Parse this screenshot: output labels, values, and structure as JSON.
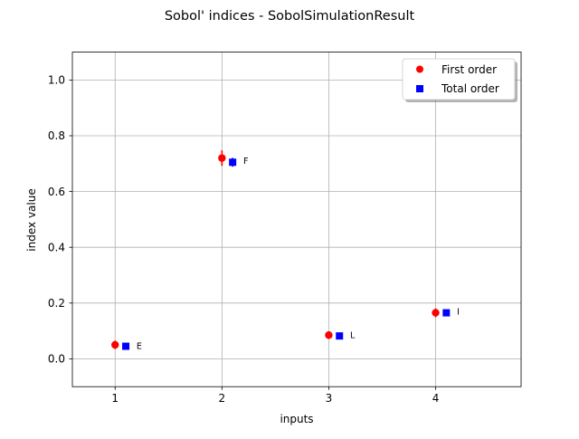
{
  "chart_data": {
    "type": "scatter",
    "title": "Sobol' indices - SobolSimulationResult",
    "xlabel": "inputs",
    "ylabel": "index value",
    "xlim": [
      0.6,
      4.8
    ],
    "ylim": [
      -0.1,
      1.1
    ],
    "xticks": [
      "1",
      "2",
      "3",
      "4"
    ],
    "yticks": [
      "0.0",
      "0.2",
      "0.4",
      "0.6",
      "0.8",
      "1.0"
    ],
    "grid": true,
    "legend": {
      "position": "top-right",
      "entries": [
        "First order",
        "Total order"
      ]
    },
    "series": [
      {
        "name": "First order",
        "marker": "circle",
        "color": "#ff0000",
        "x": [
          1,
          2,
          3,
          4
        ],
        "y": [
          0.05,
          0.72,
          0.085,
          0.165
        ],
        "err": [
          0.015,
          0.028,
          0.014,
          0.016
        ]
      },
      {
        "name": "Total order",
        "marker": "square",
        "color": "#0000ff",
        "x": [
          1.1,
          2.1,
          3.1,
          4.1
        ],
        "y": [
          0.045,
          0.705,
          0.082,
          0.165
        ],
        "err": [
          0.006,
          0.016,
          0.006,
          0.006
        ]
      }
    ],
    "annotations": [
      {
        "text": "E",
        "x": 1.2,
        "y": 0.047
      },
      {
        "text": "F",
        "x": 2.2,
        "y": 0.71
      },
      {
        "text": "L",
        "x": 3.2,
        "y": 0.085
      },
      {
        "text": "I",
        "x": 4.2,
        "y": 0.17
      }
    ]
  }
}
